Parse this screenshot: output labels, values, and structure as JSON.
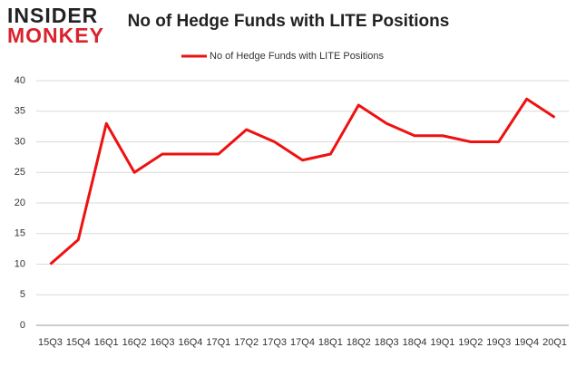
{
  "logo": {
    "line1": "INSIDER",
    "line2": "MONKEY"
  },
  "chart_data": {
    "type": "line",
    "title": "No of Hedge Funds with LITE Positions",
    "categories": [
      "15Q3",
      "15Q4",
      "16Q1",
      "16Q2",
      "16Q3",
      "16Q4",
      "17Q1",
      "17Q2",
      "17Q3",
      "17Q4",
      "18Q1",
      "18Q2",
      "18Q3",
      "18Q4",
      "19Q1",
      "19Q2",
      "19Q3",
      "19Q4",
      "20Q1"
    ],
    "series": [
      {
        "name": "No of Hedge Funds with LITE Positions",
        "color": "#ee1111",
        "values": [
          10,
          14,
          33,
          25,
          28,
          28,
          28,
          32,
          30,
          27,
          28,
          36,
          33,
          31,
          31,
          30,
          30,
          37,
          34
        ]
      }
    ],
    "ylim": [
      0,
      40
    ],
    "yticks": [
      0,
      5,
      10,
      15,
      20,
      25,
      30,
      35,
      40
    ],
    "grid": true,
    "legend": "top"
  }
}
